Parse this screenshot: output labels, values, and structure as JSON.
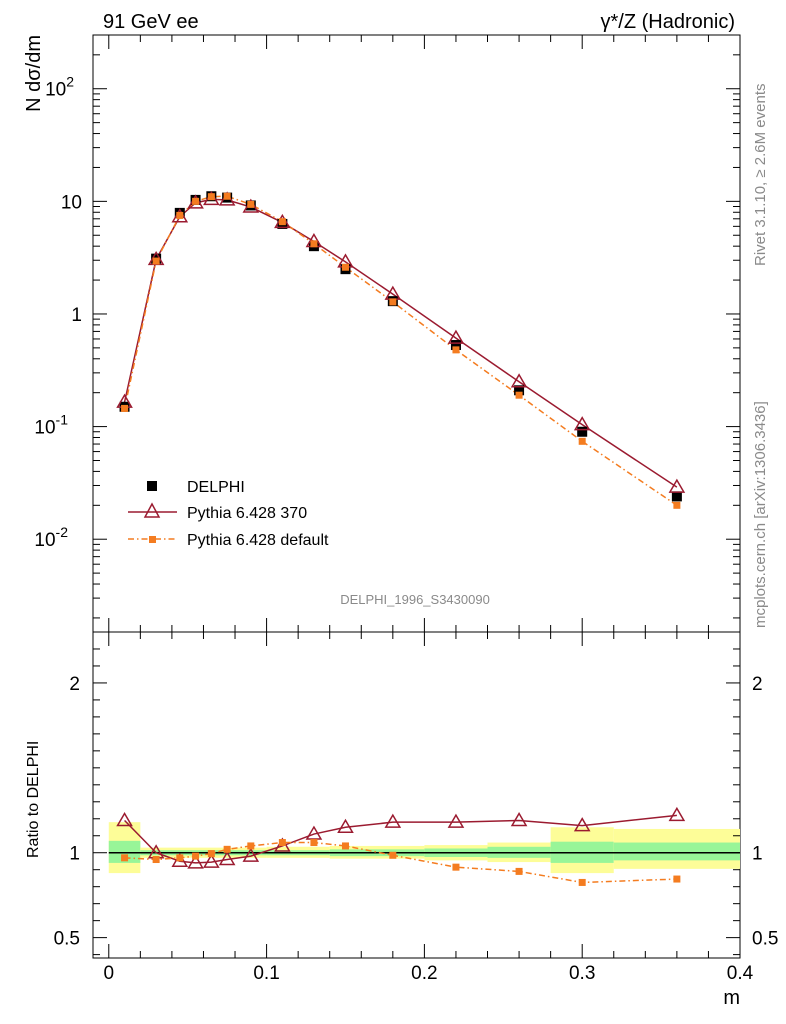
{
  "header": {
    "left_title": "91 GeV ee",
    "right_title_sup": "γ*/Z (Hadronic)"
  },
  "side_text": {
    "rivet": "Rivet 3.1.10, ≥ 2.6M events",
    "mcplots": "mcplots.cern.ch [arXiv:1306.3436]"
  },
  "analysis_tag": "DELPHI_1996_S3430090",
  "colors": {
    "delphi": "#000000",
    "pythia370": "#9b1b30",
    "pythia_default": "#f47c20",
    "band_green": "#98f598",
    "band_yellow": "#fdfd98"
  },
  "chart_data": [
    {
      "type": "line",
      "title": "",
      "xlabel": "m",
      "ylabel": "N dσ/dm",
      "yscale": "log",
      "ylim": [
        0.0015,
        300
      ],
      "xlim": [
        -0.01,
        0.4
      ],
      "y_tick_labels": [
        "10^{-2}",
        "10^{-1}",
        "1",
        "10",
        "10^{2}"
      ],
      "legend": [
        "DELPHI",
        "Pythia 6.428 370",
        "Pythia 6.428 default"
      ],
      "legend_position": "bottom-left",
      "x": [
        0.01,
        0.03,
        0.045,
        0.055,
        0.065,
        0.075,
        0.09,
        0.11,
        0.13,
        0.15,
        0.18,
        0.22,
        0.26,
        0.3,
        0.36
      ],
      "series": [
        {
          "name": "DELPHI",
          "values": [
            0.15,
            3.1,
            7.9,
            10.3,
            11.1,
            10.8,
            9.2,
            6.3,
            4.0,
            2.5,
            1.3,
            0.53,
            0.21,
            0.09,
            0.024
          ]
        },
        {
          "name": "Pythia 6.428 370",
          "values": [
            0.165,
            3.05,
            7.3,
            9.7,
            10.4,
            10.3,
            8.9,
            6.5,
            4.4,
            2.9,
            1.5,
            0.61,
            0.25,
            0.104,
            0.029
          ]
        },
        {
          "name": "Pythia 6.428 default",
          "values": [
            0.145,
            2.95,
            7.5,
            10.0,
            11.0,
            11.1,
            9.4,
            6.6,
            4.2,
            2.6,
            1.28,
            0.48,
            0.19,
            0.074,
            0.02
          ]
        }
      ]
    },
    {
      "type": "line",
      "title": "",
      "xlabel": "m",
      "ylabel": "Ratio to DELPHI",
      "ylim": [
        0.38,
        2.3
      ],
      "xlim": [
        -0.01,
        0.4
      ],
      "y_ticks": [
        0.5,
        1,
        2
      ],
      "y_tick_labels": [
        "0.5",
        "1",
        "2"
      ],
      "x_ticks": [
        0,
        0.1,
        0.2,
        0.3,
        0.4
      ],
      "x_tick_labels": [
        "0",
        "0.1",
        "0.2",
        "0.3",
        "0.4"
      ],
      "x": [
        0.01,
        0.03,
        0.045,
        0.055,
        0.065,
        0.075,
        0.09,
        0.11,
        0.13,
        0.15,
        0.18,
        0.22,
        0.26,
        0.3,
        0.36
      ],
      "series": [
        {
          "name": "Pythia 6.428 370",
          "values": [
            1.19,
            1.0,
            0.95,
            0.94,
            0.945,
            0.96,
            0.98,
            1.04,
            1.11,
            1.15,
            1.18,
            1.18,
            1.19,
            1.16,
            1.22
          ]
        },
        {
          "name": "Pythia 6.428 default",
          "values": [
            0.97,
            0.96,
            0.97,
            0.98,
            0.995,
            1.02,
            1.04,
            1.06,
            1.06,
            1.04,
            0.985,
            0.915,
            0.89,
            0.825,
            0.845
          ]
        }
      ],
      "bands": [
        {
          "x0": 0.0,
          "x1": 0.02,
          "green": [
            0.94,
            1.07
          ],
          "yellow": [
            0.88,
            1.18
          ]
        },
        {
          "x0": 0.02,
          "x1": 0.1,
          "green": [
            0.985,
            1.015
          ],
          "yellow": [
            0.97,
            1.03
          ]
        },
        {
          "x0": 0.1,
          "x1": 0.14,
          "green": [
            0.985,
            1.015
          ],
          "yellow": [
            0.97,
            1.035
          ]
        },
        {
          "x0": 0.14,
          "x1": 0.2,
          "green": [
            0.98,
            1.02
          ],
          "yellow": [
            0.965,
            1.04
          ]
        },
        {
          "x0": 0.2,
          "x1": 0.24,
          "green": [
            0.975,
            1.025
          ],
          "yellow": [
            0.955,
            1.045
          ]
        },
        {
          "x0": 0.24,
          "x1": 0.28,
          "green": [
            0.97,
            1.035
          ],
          "yellow": [
            0.945,
            1.06
          ]
        },
        {
          "x0": 0.28,
          "x1": 0.32,
          "green": [
            0.94,
            1.065
          ],
          "yellow": [
            0.88,
            1.15
          ]
        },
        {
          "x0": 0.32,
          "x1": 0.4,
          "green": [
            0.955,
            1.06
          ],
          "yellow": [
            0.905,
            1.14
          ]
        }
      ]
    }
  ]
}
